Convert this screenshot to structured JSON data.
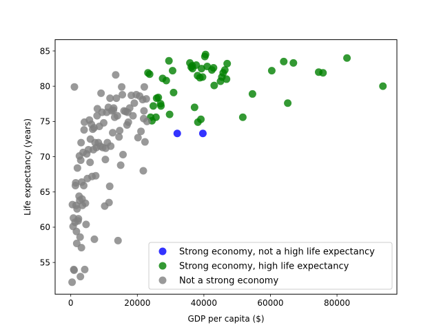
{
  "chart_data": {
    "type": "scatter",
    "title": "",
    "xlabel": "GDP per capita ($)",
    "ylabel": "Life expectancy (years)",
    "xlim": [
      -4700,
      98000
    ],
    "ylim": [
      50.5,
      86.6
    ],
    "xticks": [
      0,
      20000,
      40000,
      60000,
      80000
    ],
    "xtick_labels": [
      "0",
      "20000",
      "40000",
      "60000",
      "80000"
    ],
    "yticks": [
      55,
      60,
      65,
      70,
      75,
      80,
      85
    ],
    "ytick_labels": [
      "55",
      "60",
      "65",
      "70",
      "75",
      "80",
      "85"
    ],
    "grid": false,
    "legend_position": "lower-right",
    "series": [
      {
        "name": "Strong economy, not a high life expectancy",
        "color": "#0000ff",
        "points": [
          [
            32000,
            73.3
          ],
          [
            39700,
            73.3
          ]
        ]
      },
      {
        "name": "Strong economy, high life expectancy",
        "color": "#008000",
        "points": [
          [
            23200,
            81.9
          ],
          [
            23700,
            81.7
          ],
          [
            24000,
            75.6
          ],
          [
            24400,
            75.1
          ],
          [
            24800,
            77.2
          ],
          [
            25600,
            75.6
          ],
          [
            25800,
            78.3
          ],
          [
            26300,
            78.4
          ],
          [
            27000,
            77.5
          ],
          [
            27100,
            77.2
          ],
          [
            27600,
            81.1
          ],
          [
            28700,
            80.8
          ],
          [
            29500,
            83.6
          ],
          [
            29700,
            76.0
          ],
          [
            30600,
            82.2
          ],
          [
            30900,
            79.1
          ],
          [
            35800,
            83.3
          ],
          [
            36200,
            82.7
          ],
          [
            36500,
            82.9
          ],
          [
            36600,
            82.5
          ],
          [
            37200,
            77.0
          ],
          [
            37700,
            83.0
          ],
          [
            38100,
            81.5
          ],
          [
            38200,
            74.9
          ],
          [
            38800,
            81.2
          ],
          [
            39100,
            75.3
          ],
          [
            39300,
            82.5
          ],
          [
            39600,
            81.3
          ],
          [
            40300,
            84.2
          ],
          [
            40500,
            84.5
          ],
          [
            41000,
            82.8
          ],
          [
            42400,
            82.3
          ],
          [
            42900,
            82.6
          ],
          [
            43100,
            80.1
          ],
          [
            45000,
            80.7
          ],
          [
            45400,
            81.3
          ],
          [
            45800,
            81.9
          ],
          [
            46300,
            82.3
          ],
          [
            46800,
            81.0
          ],
          [
            47000,
            83.2
          ],
          [
            51700,
            75.6
          ],
          [
            54600,
            78.9
          ],
          [
            60400,
            82.2
          ],
          [
            64000,
            83.5
          ],
          [
            65200,
            77.6
          ],
          [
            66900,
            83.3
          ],
          [
            74500,
            82.0
          ],
          [
            75800,
            81.9
          ],
          [
            83000,
            84.0
          ],
          [
            93800,
            80.0
          ]
        ]
      },
      {
        "name": "Not a strong economy",
        "color": "#808080",
        "points": [
          [
            400,
            52.2
          ],
          [
            500,
            63.2
          ],
          [
            700,
            60.1
          ],
          [
            800,
            61.3
          ],
          [
            900,
            54.0
          ],
          [
            1000,
            53.9
          ],
          [
            1100,
            79.9
          ],
          [
            1300,
            60.7
          ],
          [
            1400,
            65.9
          ],
          [
            1500,
            66.3
          ],
          [
            1600,
            63.1
          ],
          [
            1700,
            59.4
          ],
          [
            1800,
            57.7
          ],
          [
            1900,
            62.6
          ],
          [
            2000,
            68.4
          ],
          [
            2200,
            60.9
          ],
          [
            2300,
            61.2
          ],
          [
            2500,
            64.4
          ],
          [
            2600,
            70.1
          ],
          [
            2700,
            63.8
          ],
          [
            2800,
            58.6
          ],
          [
            2900,
            53.0
          ],
          [
            3000,
            69.5
          ],
          [
            3100,
            72.0
          ],
          [
            3200,
            57.1
          ],
          [
            3300,
            66.4
          ],
          [
            3400,
            64.0
          ],
          [
            3500,
            63.1
          ],
          [
            3700,
            70.6
          ],
          [
            3900,
            65.9
          ],
          [
            4000,
            73.8
          ],
          [
            4100,
            74.9
          ],
          [
            4200,
            54.0
          ],
          [
            4400,
            63.4
          ],
          [
            4600,
            60.4
          ],
          [
            4800,
            70.4
          ],
          [
            5000,
            66.9
          ],
          [
            5300,
            71.0
          ],
          [
            5600,
            75.2
          ],
          [
            5800,
            69.2
          ],
          [
            5900,
            72.5
          ],
          [
            6200,
            74.6
          ],
          [
            6400,
            67.2
          ],
          [
            6600,
            73.9
          ],
          [
            6800,
            71.0
          ],
          [
            7000,
            74.1
          ],
          [
            7100,
            58.3
          ],
          [
            7300,
            72.0
          ],
          [
            7500,
            67.3
          ],
          [
            7700,
            71.3
          ],
          [
            7900,
            75.8
          ],
          [
            8000,
            76.8
          ],
          [
            8300,
            72.0
          ],
          [
            8600,
            74.3
          ],
          [
            8900,
            71.5
          ],
          [
            9100,
            79.0
          ],
          [
            9400,
            76.3
          ],
          [
            9600,
            71.3
          ],
          [
            9900,
            74.8
          ],
          [
            10200,
            63.0
          ],
          [
            10400,
            69.6
          ],
          [
            10500,
            71.2
          ],
          [
            10800,
            76.3
          ],
          [
            11000,
            72.0
          ],
          [
            11300,
            77.0
          ],
          [
            11500,
            63.5
          ],
          [
            11700,
            65.8
          ],
          [
            11800,
            78.3
          ],
          [
            12000,
            71.5
          ],
          [
            12300,
            76.5
          ],
          [
            12600,
            73.4
          ],
          [
            12900,
            76.9
          ],
          [
            13200,
            75.6
          ],
          [
            13500,
            81.6
          ],
          [
            13700,
            78.3
          ],
          [
            14000,
            75.8
          ],
          [
            14200,
            58.1
          ],
          [
            14500,
            72.8
          ],
          [
            14700,
            73.7
          ],
          [
            15000,
            68.8
          ],
          [
            15300,
            79.9
          ],
          [
            15500,
            78.8
          ],
          [
            15700,
            70.3
          ],
          [
            16000,
            76.5
          ],
          [
            16500,
            76.4
          ],
          [
            16900,
            74.5
          ],
          [
            17300,
            74.9
          ],
          [
            17700,
            76.9
          ],
          [
            18200,
            78.7
          ],
          [
            18700,
            75.8
          ],
          [
            19100,
            77.6
          ],
          [
            19700,
            78.8
          ],
          [
            20200,
            72.7
          ],
          [
            20700,
            78.6
          ],
          [
            21100,
            73.6
          ],
          [
            21600,
            78.1
          ],
          [
            22000,
            76.5
          ],
          [
            22300,
            72.1
          ],
          [
            22700,
            78.2
          ],
          [
            22900,
            75.0
          ],
          [
            21800,
            68.0
          ],
          [
            22100,
            79.9
          ],
          [
            21900,
            75.4
          ],
          [
            17100,
            76.3
          ],
          [
            12800,
            76.6
          ]
        ]
      }
    ]
  }
}
